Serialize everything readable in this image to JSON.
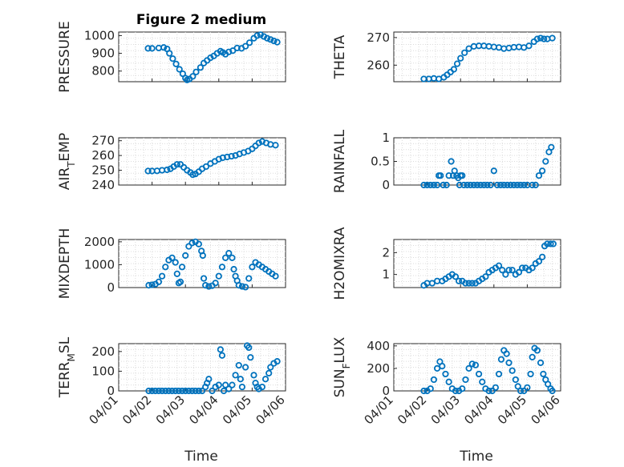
{
  "figure_title": "Figure 2 medium",
  "xlabel": "Time",
  "colors": {
    "marker": "#0072BD",
    "axis": "#262626",
    "grid": "#dcdcdc"
  },
  "chart_data": [
    {
      "type": "scatter",
      "ylabel": "PRESSURE",
      "xlim": [
        0,
        5
      ],
      "ylim": [
        740,
        1020
      ],
      "yticks": [
        800,
        900,
        1000
      ],
      "xticks": [],
      "grid": true,
      "points": [
        [
          0.88,
          928
        ],
        [
          1.0,
          928
        ],
        [
          1.2,
          930
        ],
        [
          1.35,
          933
        ],
        [
          1.45,
          925
        ],
        [
          1.52,
          900
        ],
        [
          1.62,
          870
        ],
        [
          1.72,
          840
        ],
        [
          1.82,
          810
        ],
        [
          1.92,
          785
        ],
        [
          2.0,
          760
        ],
        [
          2.05,
          750
        ],
        [
          2.12,
          755
        ],
        [
          2.22,
          770
        ],
        [
          2.32,
          795
        ],
        [
          2.45,
          820
        ],
        [
          2.55,
          845
        ],
        [
          2.65,
          860
        ],
        [
          2.75,
          875
        ],
        [
          2.85,
          885
        ],
        [
          2.95,
          900
        ],
        [
          3.05,
          912
        ],
        [
          3.12,
          905
        ],
        [
          3.2,
          895
        ],
        [
          3.3,
          908
        ],
        [
          3.42,
          915
        ],
        [
          3.55,
          930
        ],
        [
          3.68,
          928
        ],
        [
          3.8,
          940
        ],
        [
          3.92,
          960
        ],
        [
          4.05,
          985
        ],
        [
          4.15,
          1000
        ],
        [
          4.25,
          1005
        ],
        [
          4.35,
          995
        ],
        [
          4.45,
          985
        ],
        [
          4.55,
          978
        ],
        [
          4.65,
          970
        ],
        [
          4.75,
          963
        ]
      ]
    },
    {
      "type": "scatter",
      "ylabel": "THETA",
      "xlim": [
        0,
        5
      ],
      "ylim": [
        254,
        272
      ],
      "yticks": [
        260,
        270
      ],
      "xticks": [],
      "grid": true,
      "points": [
        [
          0.9,
          255
        ],
        [
          1.05,
          255
        ],
        [
          1.2,
          255.2
        ],
        [
          1.35,
          255
        ],
        [
          1.5,
          255.6
        ],
        [
          1.6,
          256.5
        ],
        [
          1.7,
          257.5
        ],
        [
          1.8,
          258.5
        ],
        [
          1.9,
          260.5
        ],
        [
          2.0,
          262.5
        ],
        [
          2.12,
          264.5
        ],
        [
          2.25,
          266
        ],
        [
          2.4,
          266.8
        ],
        [
          2.55,
          267
        ],
        [
          2.7,
          267
        ],
        [
          2.85,
          266.8
        ],
        [
          3.0,
          266.6
        ],
        [
          3.15,
          266.4
        ],
        [
          3.3,
          266
        ],
        [
          3.45,
          266.2
        ],
        [
          3.6,
          266.5
        ],
        [
          3.75,
          266.6
        ],
        [
          3.9,
          266.4
        ],
        [
          4.05,
          267
        ],
        [
          4.2,
          268.5
        ],
        [
          4.3,
          269.5
        ],
        [
          4.4,
          269.8
        ],
        [
          4.5,
          269.5
        ],
        [
          4.6,
          269.5
        ],
        [
          4.75,
          269.8
        ]
      ]
    },
    {
      "type": "scatter",
      "ylabel": "AIR_TEMP",
      "xlim": [
        0,
        5
      ],
      "ylim": [
        240,
        272
      ],
      "yticks": [
        240,
        250,
        260,
        270
      ],
      "xticks": [],
      "grid": true,
      "points": [
        [
          0.88,
          249.5
        ],
        [
          1.0,
          249.5
        ],
        [
          1.15,
          249.6
        ],
        [
          1.3,
          250
        ],
        [
          1.45,
          250.3
        ],
        [
          1.55,
          251
        ],
        [
          1.65,
          252.5
        ],
        [
          1.75,
          254
        ],
        [
          1.85,
          254
        ],
        [
          1.95,
          252
        ],
        [
          2.05,
          250
        ],
        [
          2.15,
          248.5
        ],
        [
          2.22,
          247
        ],
        [
          2.3,
          247.5
        ],
        [
          2.4,
          249
        ],
        [
          2.5,
          251
        ],
        [
          2.62,
          252.5
        ],
        [
          2.75,
          254.5
        ],
        [
          2.88,
          256
        ],
        [
          3.0,
          257.5
        ],
        [
          3.12,
          258.5
        ],
        [
          3.25,
          259
        ],
        [
          3.38,
          259.5
        ],
        [
          3.5,
          260
        ],
        [
          3.62,
          261
        ],
        [
          3.75,
          262
        ],
        [
          3.88,
          263
        ],
        [
          4.0,
          264.5
        ],
        [
          4.1,
          266.5
        ],
        [
          4.2,
          268.5
        ],
        [
          4.3,
          269.5
        ],
        [
          4.42,
          268.5
        ],
        [
          4.55,
          267.5
        ],
        [
          4.7,
          267
        ]
      ]
    },
    {
      "type": "scatter",
      "ylabel": "RAINFALL",
      "xlim": [
        0,
        5
      ],
      "ylim": [
        0,
        1
      ],
      "yticks": [
        0,
        0.5,
        1
      ],
      "xticks": [],
      "grid": true,
      "points": [
        [
          0.9,
          0
        ],
        [
          1.0,
          0
        ],
        [
          1.1,
          0
        ],
        [
          1.2,
          0
        ],
        [
          1.3,
          0
        ],
        [
          1.35,
          0.2
        ],
        [
          1.4,
          0.2
        ],
        [
          1.48,
          0
        ],
        [
          1.58,
          0
        ],
        [
          1.65,
          0.2
        ],
        [
          1.72,
          0.5
        ],
        [
          1.78,
          0.2
        ],
        [
          1.82,
          0.3
        ],
        [
          1.88,
          0.2
        ],
        [
          1.93,
          0.15
        ],
        [
          1.97,
          0
        ],
        [
          2.0,
          0.2
        ],
        [
          2.05,
          0.2
        ],
        [
          2.1,
          0
        ],
        [
          2.2,
          0
        ],
        [
          2.3,
          0
        ],
        [
          2.4,
          0
        ],
        [
          2.5,
          0
        ],
        [
          2.6,
          0
        ],
        [
          2.7,
          0
        ],
        [
          2.8,
          0
        ],
        [
          2.9,
          0
        ],
        [
          3.0,
          0.3
        ],
        [
          3.1,
          0
        ],
        [
          3.2,
          0
        ],
        [
          3.3,
          0
        ],
        [
          3.4,
          0
        ],
        [
          3.5,
          0
        ],
        [
          3.6,
          0
        ],
        [
          3.7,
          0
        ],
        [
          3.8,
          0
        ],
        [
          3.9,
          0
        ],
        [
          4.0,
          0
        ],
        [
          4.15,
          0
        ],
        [
          4.25,
          0
        ],
        [
          4.35,
          0.2
        ],
        [
          4.45,
          0.3
        ],
        [
          4.55,
          0.5
        ],
        [
          4.65,
          0.7
        ],
        [
          4.72,
          0.8
        ]
      ]
    },
    {
      "type": "scatter",
      "ylabel": "MIXDEPTH",
      "xlim": [
        0,
        5
      ],
      "ylim": [
        0,
        2100
      ],
      "yticks": [
        0,
        1000,
        2000
      ],
      "xticks": [],
      "grid": true,
      "points": [
        [
          0.9,
          100
        ],
        [
          1.0,
          120
        ],
        [
          1.1,
          150
        ],
        [
          1.2,
          250
        ],
        [
          1.3,
          500
        ],
        [
          1.4,
          900
        ],
        [
          1.5,
          1200
        ],
        [
          1.6,
          1300
        ],
        [
          1.7,
          1100
        ],
        [
          1.75,
          600
        ],
        [
          1.8,
          200
        ],
        [
          1.85,
          250
        ],
        [
          1.9,
          900
        ],
        [
          2.0,
          1400
        ],
        [
          2.1,
          1800
        ],
        [
          2.2,
          1950
        ],
        [
          2.3,
          2000
        ],
        [
          2.4,
          1900
        ],
        [
          2.48,
          1600
        ],
        [
          2.52,
          1400
        ],
        [
          2.55,
          400
        ],
        [
          2.6,
          100
        ],
        [
          2.7,
          50
        ],
        [
          2.8,
          80
        ],
        [
          2.9,
          200
        ],
        [
          3.0,
          500
        ],
        [
          3.1,
          900
        ],
        [
          3.2,
          1300
        ],
        [
          3.3,
          1500
        ],
        [
          3.4,
          1300
        ],
        [
          3.45,
          800
        ],
        [
          3.5,
          500
        ],
        [
          3.55,
          300
        ],
        [
          3.6,
          100
        ],
        [
          3.7,
          50
        ],
        [
          3.8,
          20
        ],
        [
          3.9,
          400
        ],
        [
          4.0,
          900
        ],
        [
          4.1,
          1100
        ],
        [
          4.2,
          1000
        ],
        [
          4.3,
          900
        ],
        [
          4.4,
          800
        ],
        [
          4.5,
          700
        ],
        [
          4.6,
          600
        ],
        [
          4.7,
          500
        ]
      ]
    },
    {
      "type": "scatter",
      "ylabel": "H2OMIXRA",
      "xlim": [
        0,
        5
      ],
      "ylim": [
        0.4,
        2.6
      ],
      "yticks": [
        1,
        2
      ],
      "xticks": [],
      "grid": true,
      "points": [
        [
          0.9,
          0.5
        ],
        [
          1.0,
          0.6
        ],
        [
          1.15,
          0.6
        ],
        [
          1.3,
          0.7
        ],
        [
          1.45,
          0.7
        ],
        [
          1.55,
          0.8
        ],
        [
          1.65,
          0.9
        ],
        [
          1.75,
          1.0
        ],
        [
          1.85,
          0.9
        ],
        [
          1.95,
          0.7
        ],
        [
          2.05,
          0.7
        ],
        [
          2.15,
          0.6
        ],
        [
          2.25,
          0.6
        ],
        [
          2.35,
          0.6
        ],
        [
          2.45,
          0.6
        ],
        [
          2.55,
          0.7
        ],
        [
          2.65,
          0.8
        ],
        [
          2.75,
          0.9
        ],
        [
          2.85,
          1.1
        ],
        [
          2.95,
          1.2
        ],
        [
          3.05,
          1.3
        ],
        [
          3.15,
          1.4
        ],
        [
          3.25,
          1.2
        ],
        [
          3.35,
          1.0
        ],
        [
          3.45,
          1.2
        ],
        [
          3.55,
          1.2
        ],
        [
          3.65,
          1.0
        ],
        [
          3.75,
          1.1
        ],
        [
          3.85,
          1.3
        ],
        [
          3.95,
          1.3
        ],
        [
          4.05,
          1.2
        ],
        [
          4.15,
          1.3
        ],
        [
          4.25,
          1.5
        ],
        [
          4.35,
          1.6
        ],
        [
          4.45,
          1.8
        ],
        [
          4.52,
          2.3
        ],
        [
          4.6,
          2.4
        ],
        [
          4.7,
          2.4
        ],
        [
          4.78,
          2.4
        ]
      ]
    },
    {
      "type": "scatter",
      "ylabel": "TERR_MSL",
      "xlim": [
        0,
        5
      ],
      "ylim": [
        0,
        240
      ],
      "yticks": [
        0,
        100,
        200
      ],
      "xticks": [
        "04/01",
        "04/02",
        "04/03",
        "04/04",
        "04/05",
        "04/06"
      ],
      "grid": true,
      "points": [
        [
          0.9,
          0
        ],
        [
          1.0,
          0
        ],
        [
          1.1,
          0
        ],
        [
          1.2,
          0
        ],
        [
          1.3,
          0
        ],
        [
          1.4,
          0
        ],
        [
          1.5,
          0
        ],
        [
          1.6,
          0
        ],
        [
          1.7,
          0
        ],
        [
          1.8,
          0
        ],
        [
          1.9,
          0
        ],
        [
          2.0,
          0
        ],
        [
          2.1,
          0
        ],
        [
          2.2,
          0
        ],
        [
          2.3,
          0
        ],
        [
          2.4,
          0
        ],
        [
          2.5,
          0
        ],
        [
          2.6,
          20
        ],
        [
          2.65,
          40
        ],
        [
          2.7,
          60
        ],
        [
          2.8,
          0
        ],
        [
          2.9,
          20
        ],
        [
          3.0,
          30
        ],
        [
          3.05,
          210
        ],
        [
          3.1,
          180
        ],
        [
          3.15,
          0
        ],
        [
          3.2,
          30
        ],
        [
          3.3,
          10
        ],
        [
          3.4,
          30
        ],
        [
          3.5,
          80
        ],
        [
          3.6,
          130
        ],
        [
          3.65,
          60
        ],
        [
          3.7,
          20
        ],
        [
          3.8,
          120
        ],
        [
          3.85,
          230
        ],
        [
          3.9,
          220
        ],
        [
          3.95,
          170
        ],
        [
          4.05,
          80
        ],
        [
          4.1,
          40
        ],
        [
          4.15,
          20
        ],
        [
          4.2,
          10
        ],
        [
          4.3,
          20
        ],
        [
          4.4,
          60
        ],
        [
          4.5,
          90
        ],
        [
          4.55,
          120
        ],
        [
          4.65,
          140
        ],
        [
          4.75,
          150
        ]
      ]
    },
    {
      "type": "scatter",
      "ylabel": "SUN_FLUX",
      "xlim": [
        0,
        5
      ],
      "ylim": [
        0,
        420
      ],
      "yticks": [
        0,
        200,
        400
      ],
      "xticks": [
        "04/01",
        "04/02",
        "04/03",
        "04/04",
        "04/05",
        "04/06"
      ],
      "grid": true,
      "points": [
        [
          0.9,
          0
        ],
        [
          1.0,
          0
        ],
        [
          1.1,
          20
        ],
        [
          1.2,
          100
        ],
        [
          1.3,
          200
        ],
        [
          1.38,
          260
        ],
        [
          1.45,
          220
        ],
        [
          1.55,
          150
        ],
        [
          1.65,
          80
        ],
        [
          1.75,
          20
        ],
        [
          1.85,
          0
        ],
        [
          1.95,
          0
        ],
        [
          2.05,
          20
        ],
        [
          2.15,
          100
        ],
        [
          2.25,
          200
        ],
        [
          2.35,
          240
        ],
        [
          2.45,
          230
        ],
        [
          2.55,
          150
        ],
        [
          2.65,
          80
        ],
        [
          2.75,
          20
        ],
        [
          2.85,
          0
        ],
        [
          2.95,
          0
        ],
        [
          3.05,
          30
        ],
        [
          3.15,
          150
        ],
        [
          3.22,
          280
        ],
        [
          3.3,
          360
        ],
        [
          3.38,
          330
        ],
        [
          3.45,
          250
        ],
        [
          3.55,
          180
        ],
        [
          3.65,
          100
        ],
        [
          3.72,
          40
        ],
        [
          3.8,
          0
        ],
        [
          3.9,
          0
        ],
        [
          4.0,
          30
        ],
        [
          4.1,
          150
        ],
        [
          4.15,
          300
        ],
        [
          4.22,
          380
        ],
        [
          4.3,
          360
        ],
        [
          4.4,
          250
        ],
        [
          4.48,
          150
        ],
        [
          4.55,
          100
        ],
        [
          4.62,
          60
        ],
        [
          4.7,
          20
        ],
        [
          4.75,
          0
        ]
      ]
    }
  ]
}
